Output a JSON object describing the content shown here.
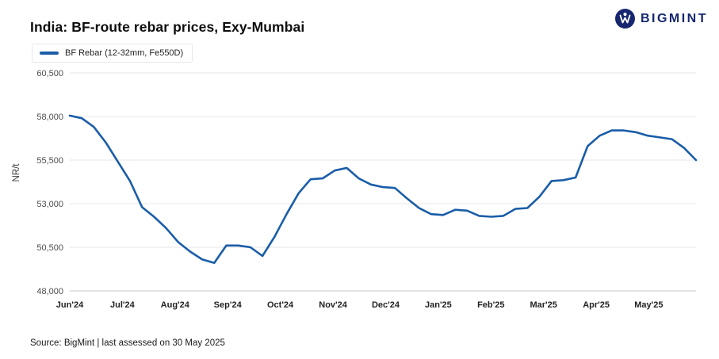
{
  "header": {
    "title": "India: BF-route rebar prices, Exy-Mumbai",
    "logo_text": "BIGMINT"
  },
  "legend": {
    "label": "BF Rebar (12-32mm, Fe550D)"
  },
  "footer": {
    "source": "Source: BigMint | last assessed on 30 May 2025"
  },
  "colors": {
    "brand_navy": "#16276f",
    "line_blue": "#1a5da8",
    "gridline": "#e7e7e7",
    "axis_line": "#c9c9c9"
  },
  "chart_data": {
    "type": "line",
    "title": "India: BF-route rebar prices, Exy-Mumbai",
    "ylabel": "NR/t",
    "ylim": [
      48000,
      60500
    ],
    "y_ticks": [
      48000,
      50500,
      53000,
      55500,
      58000,
      60500
    ],
    "grid": "horizontal",
    "legend_position": "top-left",
    "line_color": "#1a5da8",
    "x_unit": "weekly assessments, Jun 2024 - May 2025",
    "x_tick_labels": [
      "Jun'24",
      "Jul'24",
      "Aug'24",
      "Sep'24",
      "Oct'24",
      "Nov'24",
      "Dec'24",
      "Jan'25",
      "Feb'25",
      "Mar'25",
      "Apr'25",
      "May'25"
    ],
    "x_tick_weeks": [
      0,
      4.37,
      8.74,
      13.11,
      17.48,
      21.86,
      26.23,
      30.6,
      34.97,
      39.34,
      43.71,
      48.08
    ],
    "series": [
      {
        "name": "BF Rebar (12-32mm, Fe550D)",
        "values": [
          58050,
          57900,
          57400,
          56500,
          55400,
          54300,
          52800,
          52250,
          51600,
          50800,
          50250,
          49800,
          49600,
          50600,
          50600,
          50500,
          50000,
          51100,
          52400,
          53600,
          54400,
          54450,
          54900,
          55050,
          54450,
          54100,
          53950,
          53900,
          53300,
          52750,
          52400,
          52350,
          52650,
          52600,
          52300,
          52250,
          52300,
          52700,
          52750,
          53400,
          54300,
          54350,
          54500,
          56300,
          56900,
          57200,
          57200,
          57100,
          56900,
          56800,
          56700,
          56200,
          55500
        ]
      }
    ]
  }
}
